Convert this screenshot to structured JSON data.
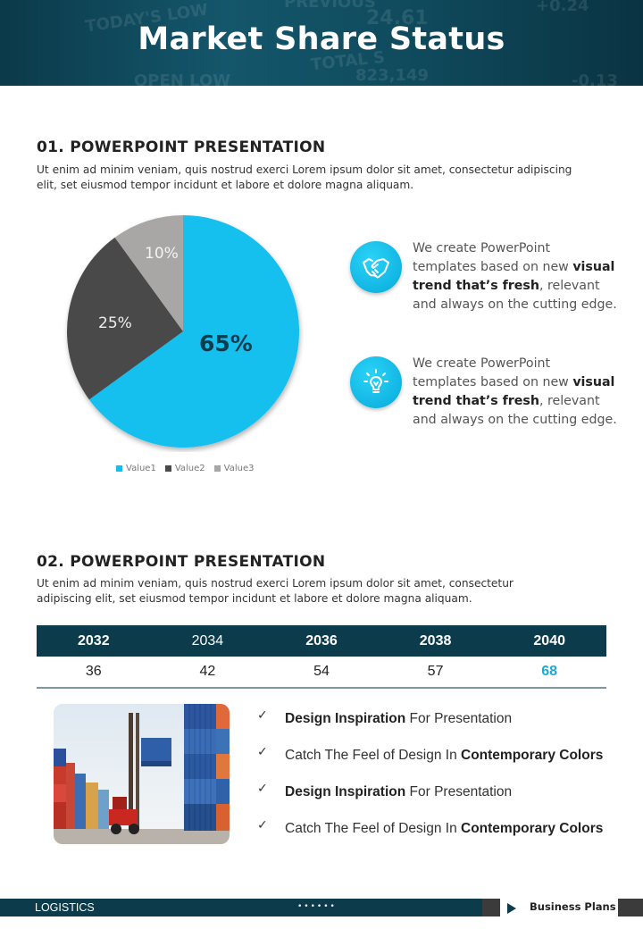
{
  "header": {
    "title": "Market Share Status"
  },
  "section1": {
    "title": "01.  POWERPOINT PRESENTATION",
    "text": "Ut enim ad minim veniam, quis nostrud exerci  Lorem ipsum dolor sit amet, consectetur adipiscing elit, set eiusmod tempor incidunt  et labore et dolore magna aliquam."
  },
  "chart_data": {
    "type": "pie",
    "categories": [
      "Value1",
      "Value2",
      "Value3"
    ],
    "values": [
      65,
      25,
      10
    ],
    "labels": [
      "65%",
      "25%",
      "10%"
    ],
    "colors": [
      "#12c0ee",
      "#4a4a4a",
      "#a9a6a6"
    ],
    "legend": "bottom",
    "title": ""
  },
  "features": [
    {
      "icon": "handshake-icon",
      "pre": "We create PowerPoint templates based on new ",
      "bold": "visual trend that’s fresh",
      "post": ", relevant and always on the cutting edge."
    },
    {
      "icon": "lightbulb-icon",
      "pre": "We create PowerPoint templates based on new ",
      "bold": "visual trend that’s fresh",
      "post": ", relevant and always on the cutting edge."
    }
  ],
  "section2": {
    "title": "02.  POWERPOINT PRESENTATION",
    "text": "Ut enim ad minim veniam, quis nostrud exerci  Lorem ipsum dolor sit amet, consectetur adipiscing elit, set eiusmod tempor  incidunt et labore et dolore magna aliquam."
  },
  "table": {
    "years": [
      "2032",
      "2034",
      "2036",
      "2038",
      "2040"
    ],
    "values": [
      "36",
      "42",
      "54",
      "57",
      "68"
    ],
    "highlight_color": "#1aaad6"
  },
  "checklist": [
    {
      "bold_first": "Design Inspiration",
      "rest": " For Presentation"
    },
    {
      "plain": "Catch The Feel of Design In ",
      "bold_last": "Contemporary Colors"
    },
    {
      "bold_first": "Design Inspiration",
      "rest": " For Presentation"
    },
    {
      "plain": "Catch The Feel of Design In ",
      "bold_last": "Contemporary Colors"
    }
  ],
  "footer": {
    "left": "LOGISTICS",
    "dots": "••••••",
    "right": "Business Plans"
  },
  "colors": {
    "navy": "#0c3b4c",
    "accent": "#12c0ee"
  }
}
